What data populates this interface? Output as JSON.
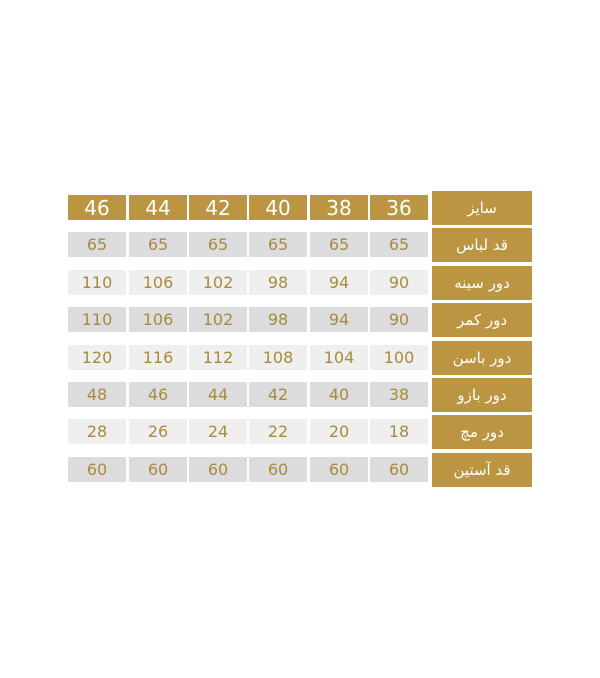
{
  "header": {
    "label": "سایز",
    "sizes": [
      "46",
      "44",
      "42",
      "40",
      "38",
      "36"
    ]
  },
  "rows": [
    {
      "label": "قد لباس",
      "values": [
        "65",
        "65",
        "65",
        "65",
        "65",
        "65"
      ]
    },
    {
      "label": "دور سینه",
      "values": [
        "110",
        "106",
        "102",
        "98",
        "94",
        "90"
      ]
    },
    {
      "label": "دور کمر",
      "values": [
        "110",
        "106",
        "102",
        "98",
        "94",
        "90"
      ]
    },
    {
      "label": "دور باسن",
      "values": [
        "120",
        "116",
        "112",
        "108",
        "104",
        "100"
      ]
    },
    {
      "label": "دور بازو",
      "values": [
        "48",
        "46",
        "44",
        "42",
        "40",
        "38"
      ]
    },
    {
      "label": "دور مچ",
      "values": [
        "28",
        "26",
        "24",
        "22",
        "20",
        "18"
      ]
    },
    {
      "label": "قد آستین",
      "values": [
        "60",
        "60",
        "60",
        "60",
        "60",
        "60"
      ]
    }
  ],
  "colors": {
    "gold": "#bb9541",
    "text": "#a78a3c",
    "row_dark": "#dcdcde",
    "row_light": "#efefef"
  }
}
